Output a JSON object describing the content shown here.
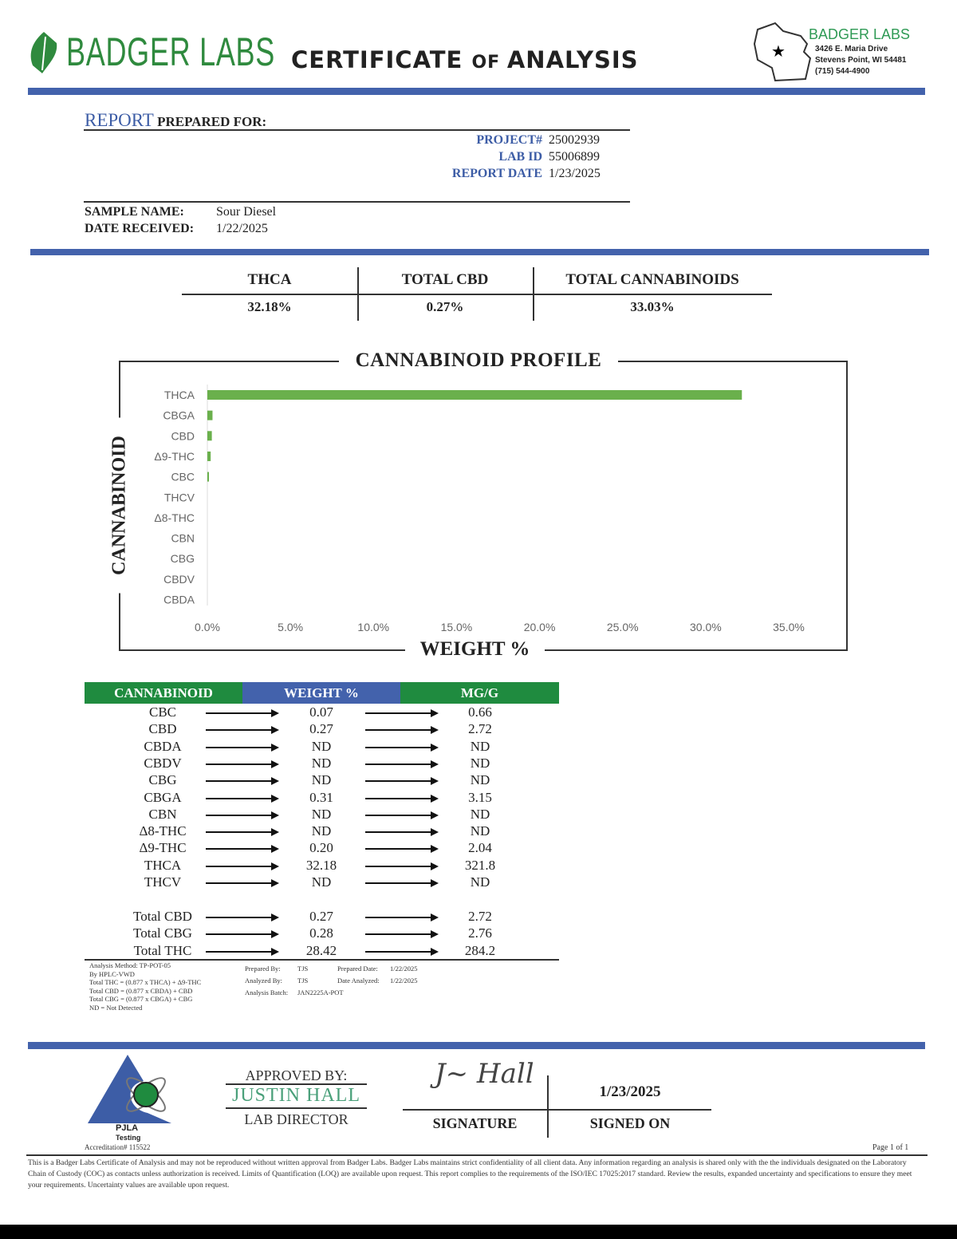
{
  "header": {
    "logo_text": "BADGER LABS",
    "title_main1": "CERTIFICATE ",
    "title_of": "OF ",
    "title_main2": "ANALYSIS",
    "address": {
      "name": "BADGER LABS",
      "street": "3426 E. Maria Drive",
      "city": "Stevens Point, WI 54481",
      "phone": "(715) 544-4900"
    }
  },
  "report": {
    "prepared_label_a": "REPORT",
    "prepared_label_b": " PREPARED FOR:",
    "project_label": "PROJECT#",
    "project": "25002939",
    "labid_label": "LAB ID",
    "labid": "55006899",
    "date_label": "REPORT DATE",
    "date": "1/23/2025",
    "sample_label": "SAMPLE NAME:",
    "sample": "Sour Diesel",
    "received_label": "DATE RECEIVED:",
    "received": "1/22/2025"
  },
  "summary": [
    {
      "label": "THCA",
      "value": "32.18%"
    },
    {
      "label": "TOTAL CBD",
      "value": "0.27%"
    },
    {
      "label": "TOTAL CANNABINOIDS",
      "value": "33.03%"
    }
  ],
  "chart_data": {
    "type": "bar",
    "orientation": "horizontal",
    "title": "CANNABINOID PROFILE",
    "xlabel": "WEIGHT %",
    "ylabel": "CANNABINOID",
    "categories": [
      "THCA",
      "CBGA",
      "CBD",
      "Δ9-THC",
      "CBC",
      "THCV",
      "Δ8-THC",
      "CBN",
      "CBG",
      "CBDV",
      "CBDA"
    ],
    "values": [
      32.18,
      0.31,
      0.27,
      0.2,
      0.07,
      0,
      0,
      0,
      0,
      0,
      0
    ],
    "xlim": [
      0,
      35
    ],
    "xticks": [
      "0.0%",
      "5.0%",
      "10.0%",
      "15.0%",
      "20.0%",
      "25.0%",
      "30.0%",
      "35.0%"
    ],
    "grid": false,
    "color": "#6ab04c"
  },
  "table": {
    "headers": [
      "CANNABINOID",
      "WEIGHT %",
      "MG/G"
    ],
    "header_colors": [
      "#1f8b3f",
      "#4362ac",
      "#1f8b3f"
    ],
    "rows": [
      [
        "CBC",
        "0.07",
        "0.66"
      ],
      [
        "CBD",
        "0.27",
        "2.72"
      ],
      [
        "CBDA",
        "ND",
        "ND"
      ],
      [
        "CBDV",
        "ND",
        "ND"
      ],
      [
        "CBG",
        "ND",
        "ND"
      ],
      [
        "CBGA",
        "0.31",
        "3.15"
      ],
      [
        "CBN",
        "ND",
        "ND"
      ],
      [
        "Δ8-THC",
        "ND",
        "ND"
      ],
      [
        "Δ9-THC",
        "0.20",
        "2.04"
      ],
      [
        "THCA",
        "32.18",
        "321.8"
      ],
      [
        "THCV",
        "ND",
        "ND"
      ]
    ],
    "totals": [
      [
        "Total CBD",
        "0.27",
        "2.72"
      ],
      [
        "Total CBG",
        "0.28",
        "2.76"
      ],
      [
        "Total THC",
        "28.42",
        "284.2"
      ]
    ]
  },
  "notes": {
    "method": [
      "Analysis Method: TP-POT-05",
      "By HPLC-VWD",
      "Total THC = (0.877 x THCA) + Δ9-THC",
      "Total CBD = (0.877 x CBDA) + CBD",
      "Total CBG = (0.877 x CBGA) + CBG",
      "ND = Not Detected"
    ],
    "prepared_by_label": "Prepared By:",
    "prepared_by": "TJS",
    "prepared_date_label": "Prepared Date:",
    "prepared_date": "1/22/2025",
    "analyzed_by_label": "Analyzed By:",
    "analyzed_by": "TJS",
    "analyzed_date_label": "Date Analyzed:",
    "analyzed_date": "1/22/2025",
    "batch_label": "Analysis Batch:",
    "batch": "JAN2225A-POT"
  },
  "footer": {
    "approved_label": "APPROVED BY:",
    "approver": "JUSTIN HALL",
    "role": "LAB DIRECTOR",
    "signature_label": "SIGNATURE",
    "signed_on_label": "SIGNED ON",
    "signed_date": "1/23/2025",
    "signature": "J. Hall",
    "pjla": "PJLA",
    "testing": "Testing",
    "accreditation": "Accreditation# 115522",
    "page": "Page 1 of 1",
    "disclaimer": "This is a Badger Labs Certificate of Analysis and may not be reproduced without written approval from Badger Labs. Badger Labs maintains strict confidentiality of all client data. Any information regarding an analysis is shared only with the the individuals designated on the Laboratory Chain of Custody (COC) as contacts unless authorization is received. Limits of Quantification (LOQ) are available upon request. This report complies to the requirements of the ISO/IEC 17025:2017 standard. Review the results, expanded uncertainty and specifications to ensure they meet your requirements. Uncertainty values are available upon request."
  }
}
